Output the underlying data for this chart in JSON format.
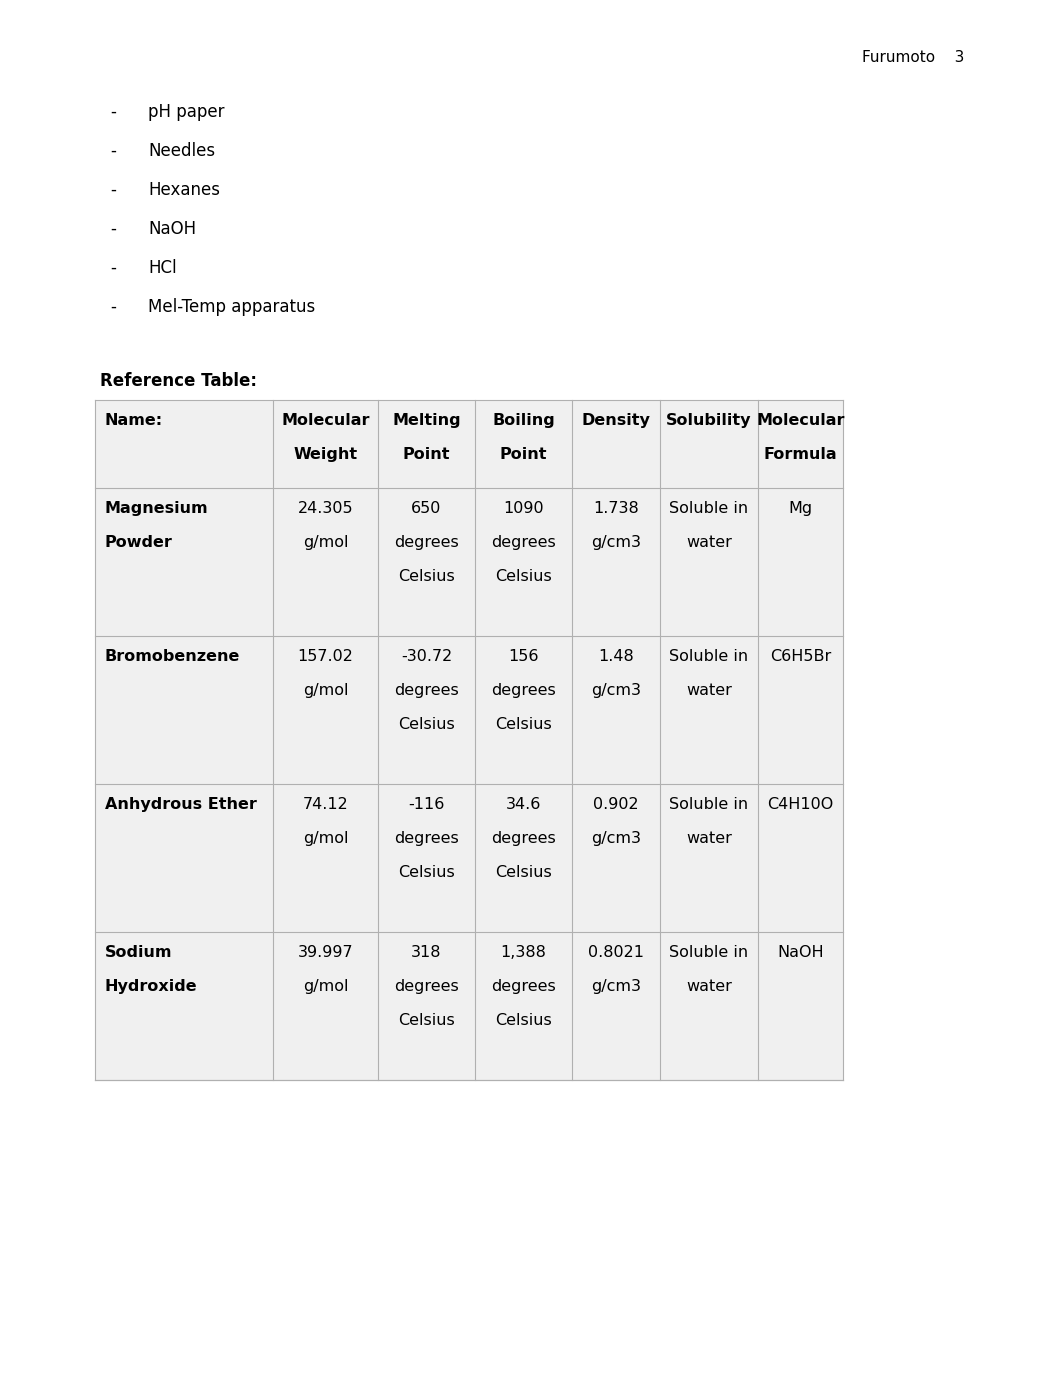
{
  "page_header": "Furumoto    3",
  "bullet_items": [
    "pH paper",
    "Needles",
    "Hexanes",
    "NaOH",
    "HCl",
    "Mel-Temp apparatus"
  ],
  "ref_table_title": "Reference Table:",
  "bg_color": "#ffffff",
  "table_bg": "#f0f0f0",
  "text_color": "#000000",
  "row_data": [
    [
      "Magnesium\nPowder",
      "24.305\ng/mol",
      "650\ndegrees\nCelsius",
      "1090\ndegrees\nCelsius",
      "1.738\ng/cm3",
      "Soluble in\nwater",
      "Mg"
    ],
    [
      "Bromobenzene",
      "157.02\ng/mol",
      "-30.72\ndegrees\nCelsius",
      "156\ndegrees\nCelsius",
      "1.48\ng/cm3",
      "Soluble in\nwater",
      "C6H5Br"
    ],
    [
      "Anhydrous Ether",
      "74.12\ng/mol",
      "-116\ndegrees\nCelsius",
      "34.6\ndegrees\nCelsius",
      "0.902\ng/cm3",
      "Soluble in\nwater",
      "C4H10O"
    ],
    [
      "Sodium\nHydroxide",
      "39.997\ng/mol",
      "318\ndegrees\nCelsius",
      "1,388\ndegrees\nCelsius",
      "0.8021\ng/cm3",
      "Soluble in\nwater",
      "NaOH"
    ]
  ]
}
